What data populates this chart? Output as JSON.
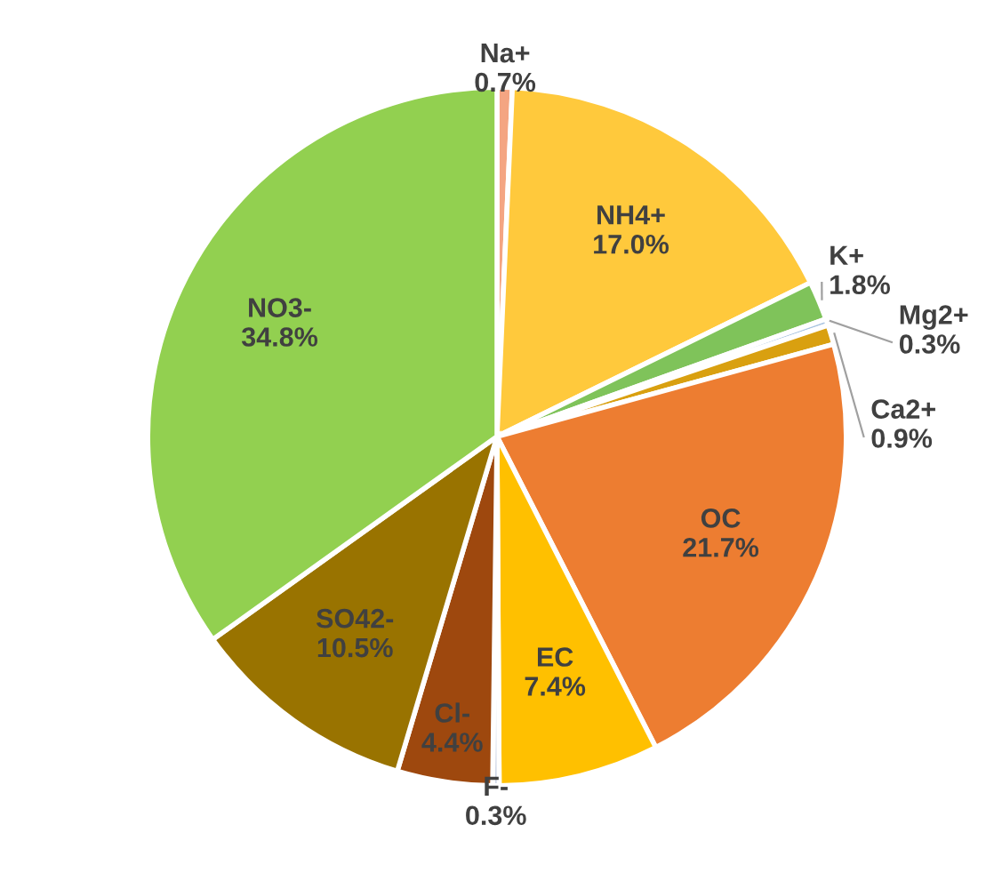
{
  "chart_data": {
    "type": "pie",
    "categories": [
      "Na+",
      "NH4+",
      "K+",
      "Mg2+",
      "Ca2+",
      "OC",
      "EC",
      "F-",
      "Cl-",
      "SO42-",
      "NO3-"
    ],
    "values": [
      0.7,
      17.0,
      1.8,
      0.3,
      0.9,
      21.7,
      7.4,
      0.3,
      4.4,
      10.5,
      34.8
    ],
    "colors": [
      "#f4a582",
      "#ffc93c",
      "#7fc35a",
      "#a9c4e0",
      "#d9a010",
      "#ed7d31",
      "#ffc000",
      "#d0d8e8",
      "#9e480e",
      "#997300",
      "#92d050"
    ],
    "value_labels": [
      "0.7%",
      "17.0%",
      "1.8%",
      "0.3%",
      "0.9%",
      "21.7%",
      "7.4%",
      "0.3%",
      "4.4%",
      "10.5%",
      "34.8%"
    ]
  }
}
